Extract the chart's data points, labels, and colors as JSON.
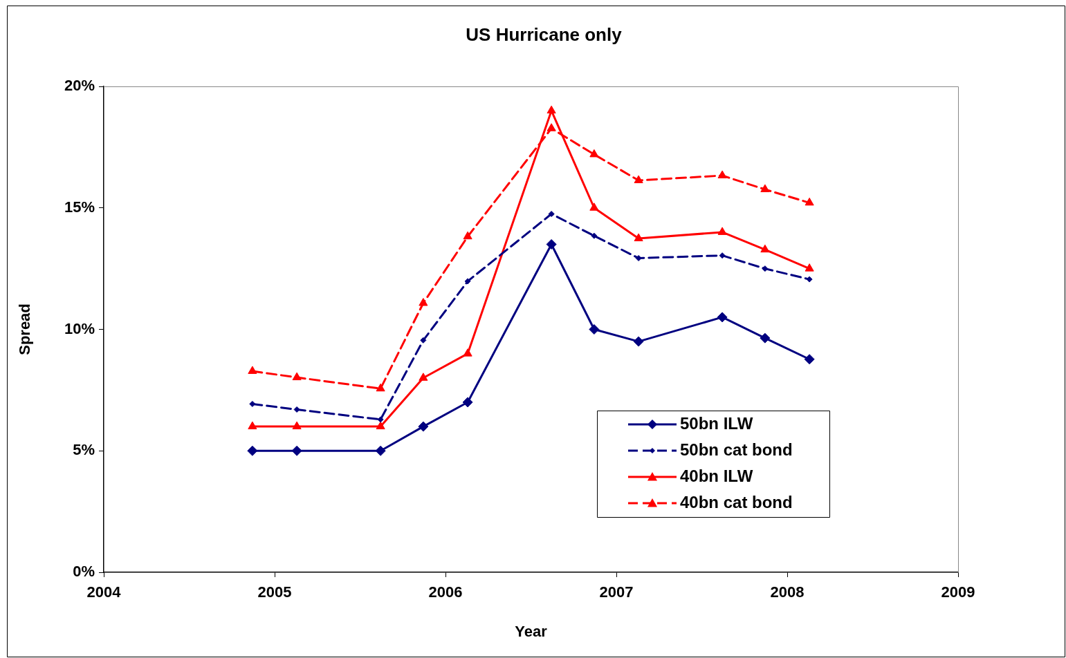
{
  "chart_data": {
    "type": "line",
    "title": "US Hurricane only",
    "xlabel": "Year",
    "ylabel": "Spread",
    "x": [
      2004.87,
      2005.13,
      2005.62,
      2005.87,
      2006.13,
      2006.62,
      2006.87,
      2007.13,
      2007.62,
      2007.87,
      2008.13
    ],
    "xlim": [
      2004,
      2009
    ],
    "xticks": [
      2004,
      2005,
      2006,
      2007,
      2008,
      2009
    ],
    "ylim": [
      0,
      20
    ],
    "yticks": [
      {
        "value": 0,
        "label": "0%"
      },
      {
        "value": 5,
        "label": "5%"
      },
      {
        "value": 10,
        "label": "10%"
      },
      {
        "value": 15,
        "label": "15%"
      },
      {
        "value": 20,
        "label": "20%"
      }
    ],
    "grid": false,
    "legend": "bottom right",
    "series": [
      {
        "name": "50bn ILW",
        "color": "#000080",
        "marker": "diamond",
        "line_style": "solid",
        "values": [
          5,
          5,
          5,
          6,
          7,
          13.5,
          10,
          9.5,
          10.5,
          9.64,
          8.77
        ]
      },
      {
        "name": "50bn cat bond",
        "color": "#000080",
        "marker": "diamond",
        "line_style": "dashed",
        "values": [
          6.93,
          6.7,
          6.29,
          9.55,
          11.98,
          14.75,
          13.85,
          12.93,
          13.04,
          12.5,
          12.06
        ]
      },
      {
        "name": "40bn ILW",
        "color": "#ff0000",
        "marker": "triangle",
        "line_style": "solid",
        "values": [
          6,
          6,
          6,
          8,
          9,
          19,
          15,
          13.74,
          14,
          13.28,
          12.5
        ]
      },
      {
        "name": "40bn cat bond",
        "color": "#ff0000",
        "marker": "triangle",
        "line_style": "dashed",
        "values": [
          8.28,
          8.02,
          7.56,
          11.08,
          13.82,
          18.27,
          17.2,
          16.13,
          16.33,
          15.76,
          15.21
        ]
      }
    ]
  }
}
